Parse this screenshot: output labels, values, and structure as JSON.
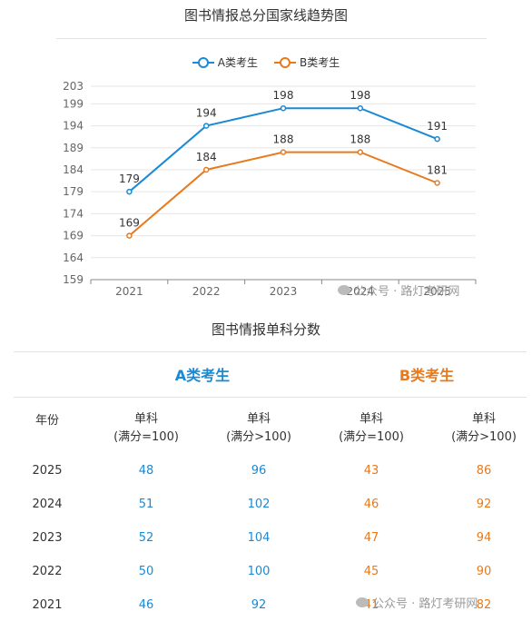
{
  "chart_title": "图书情报总分国家线趋势图",
  "legend": [
    {
      "name": "A类考生",
      "color": "#1a8ad4"
    },
    {
      "name": "B类考生",
      "color": "#e87a1e"
    }
  ],
  "chart_data": {
    "type": "line",
    "title": "图书情报总分国家线趋势图",
    "categories": [
      "2021",
      "2022",
      "2023",
      "2024",
      "2025"
    ],
    "series": [
      {
        "name": "A类考生",
        "values": [
          179,
          194,
          198,
          198,
          191
        ],
        "color": "#1a8ad4"
      },
      {
        "name": "B类考生",
        "values": [
          169,
          184,
          188,
          188,
          181
        ],
        "color": "#e87a1e"
      }
    ],
    "yticks": [
      159,
      164,
      169,
      174,
      179,
      184,
      189,
      194,
      199,
      203
    ],
    "ylim": [
      159,
      203
    ],
    "grid": true,
    "legend_position": "top-center"
  },
  "table": {
    "title": "图书情报单科分数",
    "group_a": "A类考生",
    "group_b": "B类考生",
    "year_header": "年份",
    "col_headers": [
      {
        "line1": "单科",
        "line2": "(满分=100)"
      },
      {
        "line1": "单科",
        "line2": "(满分>100)"
      },
      {
        "line1": "单科",
        "line2": "(满分=100)"
      },
      {
        "line1": "单科",
        "line2": "(满分>100)"
      }
    ],
    "rows": [
      {
        "year": "2025",
        "a100": "48",
        "a_over": "96",
        "b100": "43",
        "b_over": "86"
      },
      {
        "year": "2024",
        "a100": "51",
        "a_over": "102",
        "b100": "46",
        "b_over": "92"
      },
      {
        "year": "2023",
        "a100": "52",
        "a_over": "104",
        "b100": "47",
        "b_over": "94"
      },
      {
        "year": "2022",
        "a100": "50",
        "a_over": "100",
        "b100": "45",
        "b_over": "90"
      },
      {
        "year": "2021",
        "a100": "46",
        "a_over": "92",
        "b100": "41",
        "b_over": "82"
      }
    ]
  },
  "watermark": "公众号 · 路灯考研网"
}
